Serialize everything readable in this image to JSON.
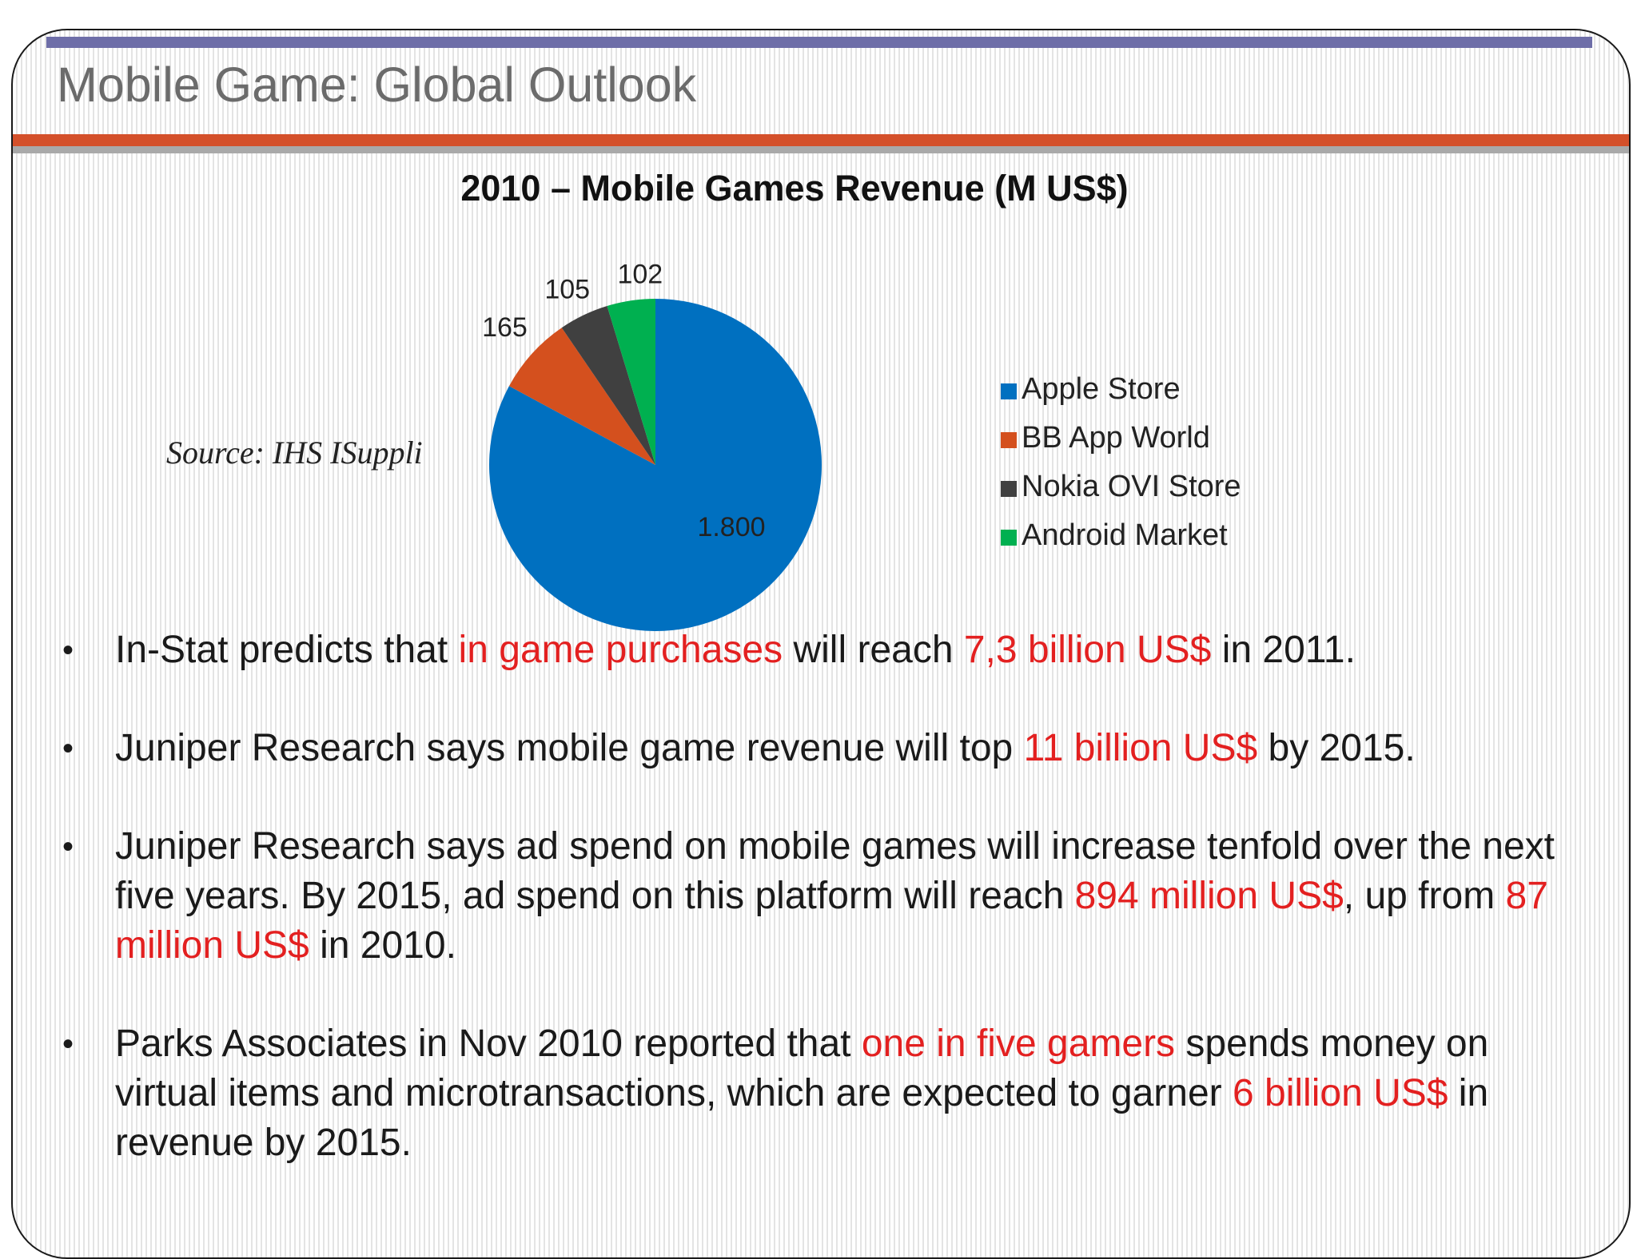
{
  "slide": {
    "title": "Mobile Game: Global Outlook",
    "source": "Source: IHS ISuppli"
  },
  "colors": {
    "apple": "#0070c0",
    "bb": "#d4501e",
    "nokia": "#404040",
    "android": "#00b050",
    "highlight": "#e32020"
  },
  "chart_data": {
    "type": "pie",
    "title": "2010 – Mobile Games Revenue (M US$)",
    "slices": [
      {
        "name": "Apple Store",
        "value": 1800,
        "label": "1.800",
        "color": "#0070c0"
      },
      {
        "name": "BB App World",
        "value": 165,
        "label": "165",
        "color": "#d4501e"
      },
      {
        "name": "Nokia OVI Store",
        "value": 105,
        "label": "105",
        "color": "#404040"
      },
      {
        "name": "Android Market",
        "value": 102,
        "label": "102",
        "color": "#00b050"
      }
    ],
    "legend_position": "right"
  },
  "bullets": [
    {
      "parts": [
        {
          "text": "In-Stat predicts that ",
          "highlight": false
        },
        {
          "text": "in game purchases",
          "highlight": true
        },
        {
          "text": " will reach ",
          "highlight": false
        },
        {
          "text": "7,3 billion US$",
          "highlight": true
        },
        {
          "text": " in 2011.",
          "highlight": false
        }
      ]
    },
    {
      "parts": [
        {
          "text": "Juniper Research says mobile game revenue will top ",
          "highlight": false
        },
        {
          "text": "11 billion US$",
          "highlight": true
        },
        {
          "text": " by 2015.",
          "highlight": false
        }
      ]
    },
    {
      "parts": [
        {
          "text": "Juniper Research says  ad spend on mobile games will increase tenfold over the next five years. By 2015, ad spend on this platform will reach ",
          "highlight": false
        },
        {
          "text": "894 million US$",
          "highlight": true
        },
        {
          "text": ", up from ",
          "highlight": false
        },
        {
          "text": "87 million US$",
          "highlight": true
        },
        {
          "text": " in 2010.",
          "highlight": false
        }
      ]
    },
    {
      "parts": [
        {
          "text": "Parks Associates in Nov 2010 reported that ",
          "highlight": false
        },
        {
          "text": "one in five gamers",
          "highlight": true
        },
        {
          "text": " spends money on virtual items and microtransactions, which are expected to garner ",
          "highlight": false
        },
        {
          "text": "6 billion US$",
          "highlight": true
        },
        {
          "text": " in revenue by 2015.",
          "highlight": false
        }
      ]
    }
  ]
}
